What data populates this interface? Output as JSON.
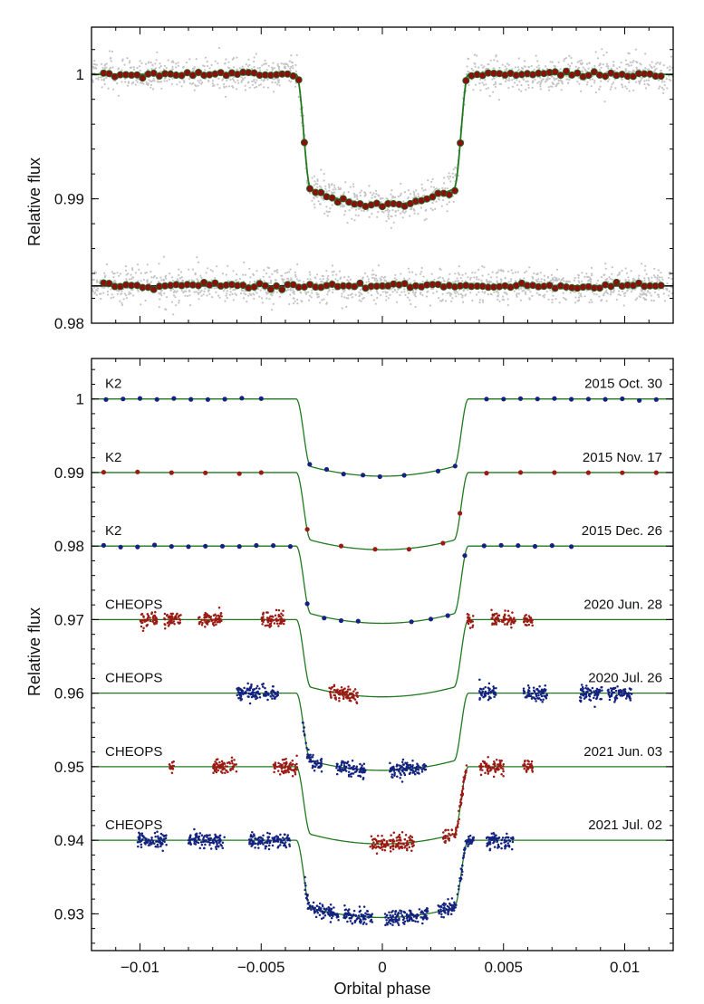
{
  "colors": {
    "model": "#1f7a1f",
    "raw_points": "#c4c4c4",
    "binned_fill": "#8b0f0f",
    "binned_edge": "#1f6b1f",
    "blue": "#14237f",
    "red": "#9a1b14",
    "frame": "#000000"
  },
  "chart_data": [
    {
      "id": "top-panel",
      "type": "scatter",
      "title": "",
      "xlabel": "",
      "ylabel": "Relative flux",
      "xlim": [
        -0.012,
        0.012
      ],
      "ylim": [
        0.98,
        1.0038
      ],
      "yticks": [
        1,
        0.99,
        0.98
      ],
      "ytick_labels": [
        "1",
        "0.99",
        "0.98"
      ],
      "xticks": [
        -0.01,
        -0.005,
        0,
        0.005,
        0.01
      ],
      "grid": false,
      "transit_model": {
        "t1": 0.00355,
        "t2": 0.00295,
        "depth": 0.0105,
        "limb_darkening": 0.0013
      },
      "series": [
        {
          "role": "raw-data-in-transit",
          "n_points": 1500,
          "scatter": 0.00065,
          "offset": 0
        },
        {
          "role": "binned-data-in-transit",
          "bin_width": 0.00023,
          "offset": 0
        },
        {
          "role": "model-in-transit",
          "offset": 0
        },
        {
          "role": "raw-residuals",
          "n_points": 1500,
          "scatter": 0.00065,
          "offset": 0.983
        },
        {
          "role": "binned-residuals",
          "bin_width": 0.00023,
          "offset": 0.983
        },
        {
          "role": "zero-residual-line",
          "y": 0.983
        }
      ]
    },
    {
      "id": "bottom-panel",
      "type": "scatter",
      "title": "",
      "xlabel": "Orbital phase",
      "ylabel": "Relative flux",
      "xlim": [
        -0.012,
        0.012
      ],
      "ylim": [
        0.925,
        1.0055
      ],
      "yticks": [
        1,
        0.99,
        0.98,
        0.97,
        0.96,
        0.95,
        0.94,
        0.93
      ],
      "ytick_labels": [
        "1",
        "0.99",
        "0.98",
        "0.97",
        "0.96",
        "0.95",
        "0.94",
        "0.93"
      ],
      "xticks": [
        -0.01,
        -0.005,
        0,
        0.005,
        0.01
      ],
      "xtick_labels": [
        "−0.01",
        "−0.005",
        "0",
        "0.005",
        "0.01"
      ],
      "grid": false,
      "transit_model": {
        "t1": 0.00355,
        "t2": 0.00295,
        "depth": 0.0105,
        "limb_darkening": 0.0013
      },
      "series": [
        {
          "instrument": "K2",
          "date": "2015 Oct. 30",
          "baseline": 1.0,
          "color": "blue",
          "kind": "sparse",
          "x": [
            -0.0114,
            -0.0107,
            -0.01,
            -0.0093,
            -0.0086,
            -0.0079,
            -0.0072,
            -0.0065,
            -0.0058,
            -0.005,
            -0.003,
            -0.0023,
            -0.0016,
            -0.0008,
            -0.0001,
            0.0009,
            0.0023,
            0.003,
            0.0043,
            0.005,
            0.0057,
            0.0064,
            0.0071,
            0.0078,
            0.0085,
            0.0092,
            0.0099,
            0.0106,
            0.0113
          ]
        },
        {
          "instrument": "K2",
          "date": "2015 Nov. 17",
          "baseline": 0.99,
          "color": "red",
          "kind": "sparse",
          "x": [
            -0.0115,
            -0.0101,
            -0.0087,
            -0.0073,
            -0.0059,
            -0.005,
            -0.0031,
            -0.0017,
            -0.0003,
            0.0011,
            0.0025,
            0.0032,
            0.0043,
            0.0057,
            0.0071,
            0.0085,
            0.0099,
            0.0113
          ]
        },
        {
          "instrument": "K2",
          "date": "2015 Dec. 26",
          "baseline": 0.98,
          "color": "blue",
          "kind": "sparse",
          "x": [
            -0.0115,
            -0.0108,
            -0.0101,
            -0.0094,
            -0.0087,
            -0.008,
            -0.0073,
            -0.0066,
            -0.0059,
            -0.0052,
            -0.0045,
            -0.0038,
            -0.0031,
            -0.0024,
            -0.0017,
            -0.001,
            0.0012,
            0.002,
            0.0027,
            0.0034,
            0.0042,
            0.0049,
            0.0056,
            0.0063,
            0.007,
            0.0078
          ]
        },
        {
          "instrument": "CHEOPS",
          "date": "2020 Jun. 28",
          "baseline": 0.97,
          "color": "red",
          "kind": "dense",
          "ranges": [
            [
              -0.01,
              -0.0093
            ],
            [
              -0.009,
              -0.0083
            ],
            [
              -0.0076,
              -0.0066
            ],
            [
              -0.005,
              -0.004
            ],
            [
              -0.0022,
              -0.001
            ],
            [
              0.0035,
              0.0038
            ],
            [
              0.0045,
              0.0055
            ],
            [
              0.0058,
              0.0062
            ]
          ]
        },
        {
          "instrument": "CHEOPS",
          "date": "2020 Jul. 26",
          "baseline": 0.96,
          "color": "blue",
          "kind": "dense",
          "ranges": [
            [
              -0.006,
              -0.0043
            ],
            [
              -0.0033,
              -0.0025
            ],
            [
              -0.0019,
              -0.0007
            ],
            [
              0.0003,
              0.0018
            ],
            [
              0.004,
              0.0047
            ],
            [
              0.0058,
              0.0068
            ],
            [
              0.0081,
              0.0091
            ],
            [
              0.0093,
              0.0103
            ]
          ]
        },
        {
          "instrument": "CHEOPS",
          "date": "2021 Jun. 03",
          "baseline": 0.95,
          "color": "red",
          "kind": "dense",
          "ranges": [
            [
              -0.0088,
              -0.0086
            ],
            [
              -0.007,
              -0.006
            ],
            [
              -0.0045,
              -0.0035
            ],
            [
              -0.0005,
              0.0013
            ],
            [
              0.0025,
              0.0035
            ],
            [
              0.004,
              0.005
            ],
            [
              0.0058,
              0.0062
            ]
          ]
        },
        {
          "instrument": "CHEOPS",
          "date": "2021 Jul. 02",
          "baseline": 0.94,
          "color": "blue",
          "kind": "dense",
          "ranges": [
            [
              -0.0101,
              -0.0089
            ],
            [
              -0.008,
              -0.0065
            ],
            [
              -0.0055,
              -0.0038
            ],
            [
              -0.0032,
              -0.0018
            ],
            [
              -0.0016,
              -0.0004
            ],
            [
              0.0001,
              0.0019
            ],
            [
              0.0023,
              0.0038
            ],
            [
              0.0043,
              0.0054
            ]
          ]
        }
      ]
    }
  ]
}
